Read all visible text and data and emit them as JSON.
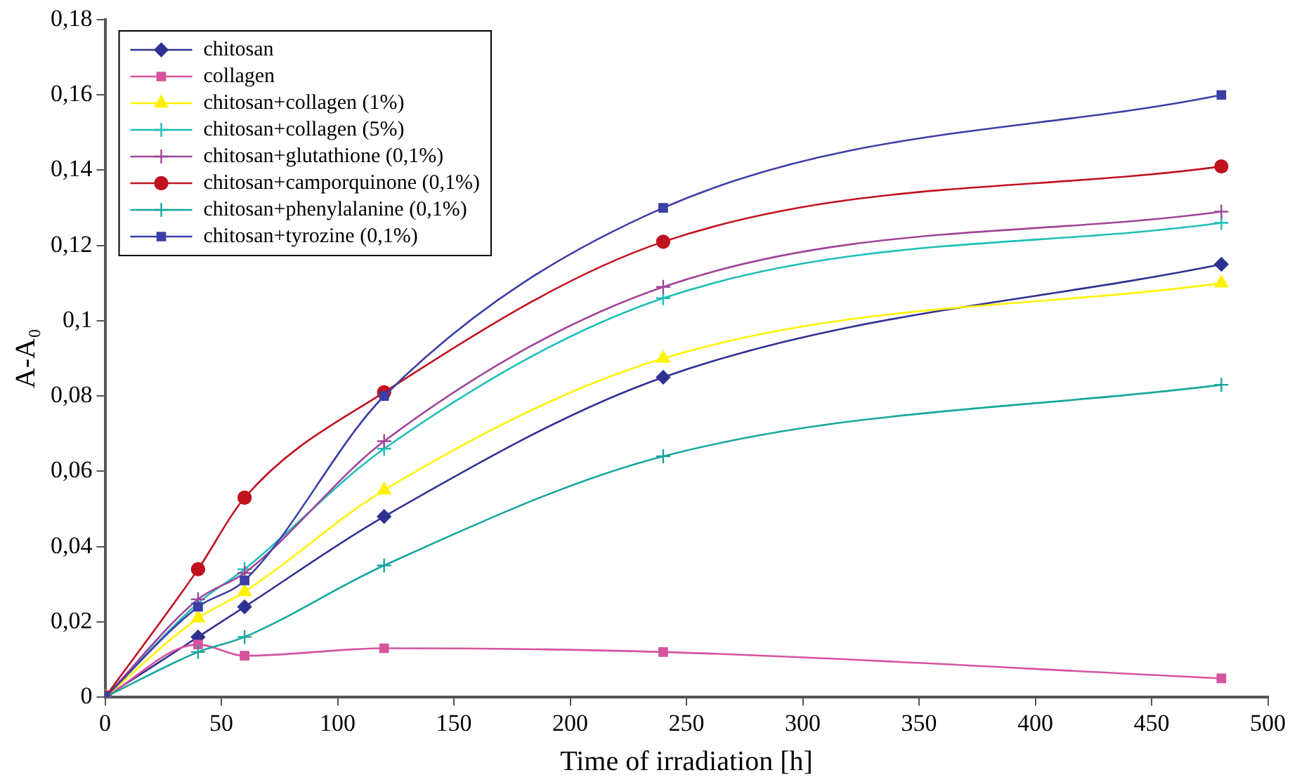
{
  "chart_data": {
    "type": "line",
    "xlabel": "Time of irradiation [h]",
    "ylabel": "A-A₀",
    "x": [
      0,
      40,
      60,
      120,
      240,
      480
    ],
    "xlim": [
      0,
      500
    ],
    "xticks": [
      0,
      50,
      100,
      150,
      200,
      250,
      300,
      350,
      400,
      450,
      500
    ],
    "ylim": [
      0,
      0.18
    ],
    "yticks": [
      0,
      {
        "value": 0.02,
        "label": "0,02"
      },
      {
        "value": 0.04,
        "label": "0,04"
      },
      {
        "value": 0.06,
        "label": "0,06"
      },
      {
        "value": 0.08,
        "label": "0,08"
      },
      {
        "value": 0.1,
        "label": "0,1"
      },
      {
        "value": 0.12,
        "label": "0,12"
      },
      {
        "value": 0.14,
        "label": "0,14"
      },
      {
        "value": 0.16,
        "label": "0,16"
      },
      {
        "value": 0.18,
        "label": "0,18"
      }
    ],
    "grid": false,
    "legend": "top left",
    "series": [
      {
        "name": "chitosan",
        "color": "#2e3192",
        "marker": "diamond",
        "values": [
          0,
          0.016,
          0.024,
          0.048,
          0.085,
          0.115
        ]
      },
      {
        "name": "collagen",
        "color": "#d6539e",
        "marker": "square",
        "values": [
          0,
          0.014,
          0.011,
          0.013,
          0.012,
          0.005
        ]
      },
      {
        "name": "chitosan+collagen (1%)",
        "color": "#fff200",
        "marker": "triangle",
        "values": [
          0,
          0.021,
          0.028,
          0.055,
          0.09,
          0.11
        ]
      },
      {
        "name": "chitosan+collagen (5%)",
        "color": "#1dbfb8",
        "marker": "cross",
        "values": [
          0,
          0.025,
          0.034,
          0.066,
          0.106,
          0.126
        ]
      },
      {
        "name": "chitosan+glutathione (0,1%)",
        "color": "#a0449a",
        "marker": "cross",
        "values": [
          0,
          0.026,
          0.033,
          0.068,
          0.109,
          0.129
        ]
      },
      {
        "name": "chitosan+camporquinone (0,1%)",
        "color": "#c1121f",
        "marker": "circle",
        "values": [
          0,
          0.034,
          0.053,
          0.081,
          0.121,
          0.141
        ]
      },
      {
        "name": "chitosan+phenylalanine (0,1%)",
        "color": "#16a79d",
        "marker": "cross",
        "values": [
          0,
          0.012,
          0.016,
          0.035,
          0.064,
          0.083
        ]
      },
      {
        "name": "chitosan+tyrozine (0,1%)",
        "color": "#3b3fa6",
        "marker": "square",
        "values": [
          0,
          0.024,
          0.031,
          0.08,
          0.13,
          0.16
        ]
      }
    ]
  }
}
